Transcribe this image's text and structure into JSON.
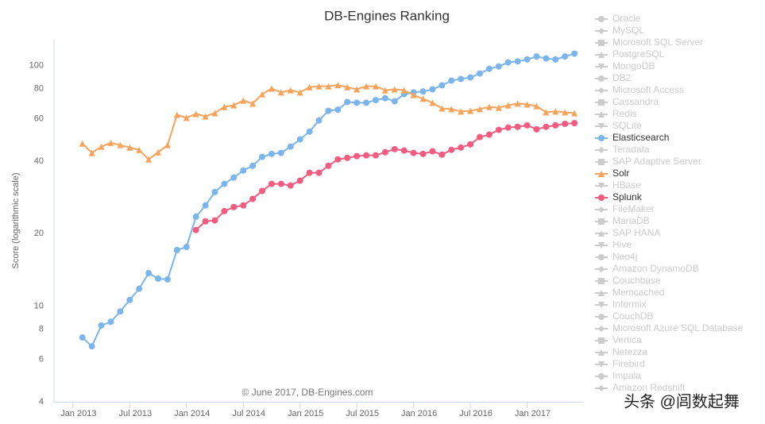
{
  "chart_data": {
    "type": "line",
    "title": "DB-Engines Ranking",
    "y_label": "Score (logarithmic scale)",
    "credits": "© June 2017, DB-Engines.com",
    "watermark": "头条 @闾数起舞",
    "log_scale": true,
    "grid": false,
    "legend": "right",
    "x": [
      "2013-02",
      "2013-03",
      "2013-04",
      "2013-05",
      "2013-06",
      "2013-07",
      "2013-08",
      "2013-09",
      "2013-10",
      "2013-11",
      "2013-12",
      "2014-01",
      "2014-02",
      "2014-03",
      "2014-04",
      "2014-05",
      "2014-06",
      "2014-07",
      "2014-08",
      "2014-09",
      "2014-10",
      "2014-11",
      "2014-12",
      "2015-01",
      "2015-02",
      "2015-03",
      "2015-04",
      "2015-05",
      "2015-06",
      "2015-07",
      "2015-08",
      "2015-09",
      "2015-10",
      "2015-11",
      "2015-12",
      "2016-01",
      "2016-02",
      "2016-03",
      "2016-04",
      "2016-05",
      "2016-06",
      "2016-07",
      "2016-08",
      "2016-09",
      "2016-10",
      "2016-11",
      "2016-12",
      "2017-01",
      "2017-02",
      "2017-03",
      "2017-04",
      "2017-05",
      "2017-06"
    ],
    "xlim": [
      "2012-11",
      "2017-07"
    ],
    "xticks": [
      {
        "value": "2013-01",
        "label": "Jan 2013"
      },
      {
        "value": "2013-07",
        "label": "Jul 2013"
      },
      {
        "value": "2014-01",
        "label": "Jan 2014"
      },
      {
        "value": "2014-07",
        "label": "Jul 2014"
      },
      {
        "value": "2015-01",
        "label": "Jan 2015"
      },
      {
        "value": "2015-07",
        "label": "Jul 2015"
      },
      {
        "value": "2016-01",
        "label": "Jan 2016"
      },
      {
        "value": "2016-07",
        "label": "Jul 2016"
      },
      {
        "value": "2017-01",
        "label": "Jan 2017"
      }
    ],
    "ylim": [
      4,
      128
    ],
    "yticks": [
      4,
      6,
      8,
      10,
      20,
      40,
      60,
      80,
      100
    ],
    "series": [
      {
        "name": "Oracle",
        "visible": false,
        "symbol": "circle",
        "color": "#cccccc"
      },
      {
        "name": "MySQL",
        "visible": false,
        "symbol": "diamond",
        "color": "#cccccc"
      },
      {
        "name": "Microsoft SQL Server",
        "visible": false,
        "symbol": "square",
        "color": "#cccccc"
      },
      {
        "name": "PostgreSQL",
        "visible": false,
        "symbol": "triangle",
        "color": "#cccccc"
      },
      {
        "name": "MongoDB",
        "visible": false,
        "symbol": "triangle-down",
        "color": "#cccccc"
      },
      {
        "name": "DB2",
        "visible": false,
        "symbol": "circle",
        "color": "#cccccc"
      },
      {
        "name": "Microsoft Access",
        "visible": false,
        "symbol": "diamond",
        "color": "#cccccc"
      },
      {
        "name": "Cassandra",
        "visible": false,
        "symbol": "square",
        "color": "#cccccc"
      },
      {
        "name": "Redis",
        "visible": false,
        "symbol": "triangle",
        "color": "#cccccc"
      },
      {
        "name": "SQLite",
        "visible": false,
        "symbol": "triangle-down",
        "color": "#cccccc"
      },
      {
        "name": "Elasticsearch",
        "visible": true,
        "symbol": "circle",
        "color": "#7cb5ec",
        "values": [
          7.4,
          6.8,
          8.3,
          8.6,
          9.5,
          10.6,
          11.8,
          13.7,
          13.0,
          12.9,
          17.1,
          17.6,
          23.5,
          26.2,
          29.8,
          32.2,
          34.2,
          36.6,
          38.3,
          41.7,
          42.9,
          43.3,
          46.0,
          49.3,
          53.1,
          59.1,
          64.8,
          65.5,
          70.5,
          70,
          70,
          71.8,
          73.1,
          71,
          76,
          77.3,
          78,
          79.6,
          82.7,
          86.5,
          87.9,
          89.2,
          92.6,
          96.9,
          99.1,
          103,
          104,
          106,
          109,
          107,
          106,
          109,
          112
        ]
      },
      {
        "name": "Teradata",
        "visible": false,
        "symbol": "diamond",
        "color": "#cccccc"
      },
      {
        "name": "SAP Adaptive Server",
        "visible": false,
        "symbol": "square",
        "color": "#cccccc"
      },
      {
        "name": "Solr",
        "visible": true,
        "symbol": "triangle",
        "color": "#f7a35c",
        "values": [
          47.4,
          43.3,
          46.0,
          47.7,
          46.7,
          45.6,
          44.6,
          40.7,
          43.6,
          46.7,
          62.4,
          60.6,
          62.9,
          61.5,
          63.4,
          67.3,
          68.3,
          71.5,
          69.5,
          76,
          80.2,
          77.3,
          78.9,
          77.3,
          81.3,
          82,
          82,
          82.9,
          81.3,
          79.6,
          82,
          82,
          78.9,
          79.6,
          78.9,
          75.4,
          72.7,
          70,
          66.3,
          65.9,
          64.4,
          64.8,
          65.9,
          67.3,
          66.8,
          68.3,
          69.5,
          68.9,
          67.8,
          63.9,
          64.4,
          63.9,
          63.4
        ]
      },
      {
        "name": "HBase",
        "visible": false,
        "symbol": "triangle-down",
        "color": "#cccccc"
      },
      {
        "name": "Splunk",
        "visible": true,
        "symbol": "circle",
        "color": "#f15c80",
        "values": [
          null,
          null,
          null,
          null,
          null,
          null,
          null,
          null,
          null,
          null,
          null,
          null,
          20.7,
          22.5,
          22.7,
          24.8,
          25.8,
          26.2,
          27.9,
          30.1,
          32.2,
          32.2,
          31.7,
          33.2,
          35.8,
          35.8,
          38.3,
          40.7,
          41.3,
          42,
          42.3,
          42.3,
          43.6,
          44.9,
          44.3,
          43.3,
          42.9,
          44,
          42.6,
          44.6,
          45.6,
          47,
          50.4,
          51.6,
          54,
          55.2,
          55.6,
          56.4,
          54.3,
          55.6,
          56.4,
          57.2,
          57.6
        ]
      },
      {
        "name": "FileMaker",
        "visible": false,
        "symbol": "diamond",
        "color": "#cccccc"
      },
      {
        "name": "MariaDB",
        "visible": false,
        "symbol": "square",
        "color": "#cccccc"
      },
      {
        "name": "SAP HANA",
        "visible": false,
        "symbol": "triangle",
        "color": "#cccccc"
      },
      {
        "name": "Hive",
        "visible": false,
        "symbol": "triangle-down",
        "color": "#cccccc"
      },
      {
        "name": "Neo4j",
        "visible": false,
        "symbol": "circle",
        "color": "#cccccc"
      },
      {
        "name": "Amazon DynamoDB",
        "visible": false,
        "symbol": "diamond",
        "color": "#cccccc"
      },
      {
        "name": "Couchbase",
        "visible": false,
        "symbol": "square",
        "color": "#cccccc"
      },
      {
        "name": "Memcached",
        "visible": false,
        "symbol": "triangle",
        "color": "#cccccc"
      },
      {
        "name": "Informix",
        "visible": false,
        "symbol": "triangle-down",
        "color": "#cccccc"
      },
      {
        "name": "CouchDB",
        "visible": false,
        "symbol": "circle",
        "color": "#cccccc"
      },
      {
        "name": "Microsoft Azure SQL Database",
        "visible": false,
        "symbol": "diamond",
        "color": "#cccccc"
      },
      {
        "name": "Vertica",
        "visible": false,
        "symbol": "square",
        "color": "#cccccc"
      },
      {
        "name": "Netezza",
        "visible": false,
        "symbol": "triangle",
        "color": "#cccccc"
      },
      {
        "name": "Firebird",
        "visible": false,
        "symbol": "triangle-down",
        "color": "#cccccc"
      },
      {
        "name": "Impala",
        "visible": false,
        "symbol": "circle",
        "color": "#cccccc"
      },
      {
        "name": "Amazon Redshift",
        "visible": false,
        "symbol": "diamond",
        "color": "#cccccc"
      }
    ]
  }
}
